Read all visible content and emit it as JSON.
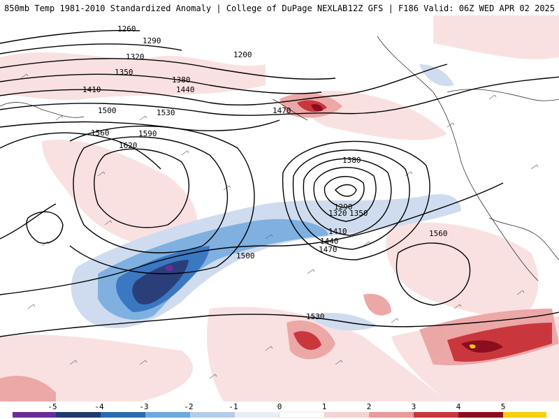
{
  "header": {
    "left_title": "850mb Temp 1981-2010 Standardized Anomaly | College of DuPage NEXLAB",
    "right_title": "12Z GFS | F186 Valid: 06Z WED APR 02 2025"
  },
  "contour_labels": [
    "1260",
    "1290",
    "1320",
    "1350",
    "1380",
    "1410",
    "1440",
    "1470",
    "1500",
    "1530",
    "1560",
    "1590",
    "1620",
    "1200",
    "1290",
    "1320",
    "1350",
    "1380",
    "1410",
    "1440",
    "1470",
    "1500",
    "1530",
    "1560"
  ],
  "legend": {
    "ticks": [
      "-5",
      "-4",
      "-3",
      "-2",
      "-1",
      "0",
      "1",
      "2",
      "3",
      "4",
      "5"
    ],
    "colors": [
      "#6a2c9a",
      "#1f3a6e",
      "#2b6cb0",
      "#6fa8dc",
      "#b3cde8",
      "#e8eef7",
      "#ffffff",
      "#f7d2d2",
      "#e99a9a",
      "#c9373d",
      "#8b0e1e",
      "#f6d10b"
    ]
  },
  "map": {
    "anomaly_cold_color": "#2a3f7a",
    "anomaly_warm_color": "#c9373d",
    "contour_color": "#000000"
  }
}
